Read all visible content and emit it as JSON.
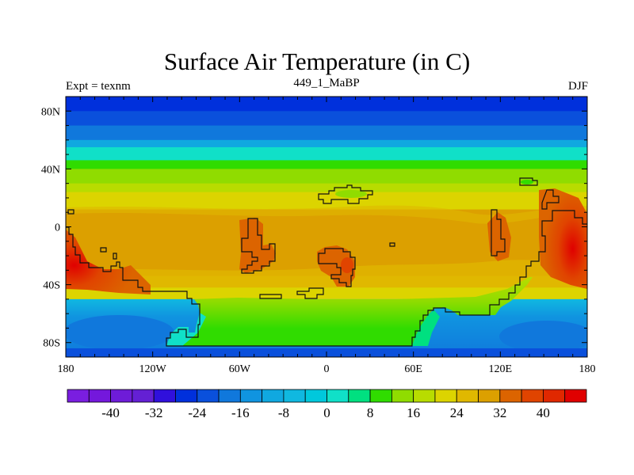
{
  "chart_data": {
    "type": "heatmap",
    "title": "Surface Air Temperature (in C)",
    "subtitle_left": "Expt = texnm",
    "subtitle_center": "449_1_MaBP",
    "subtitle_right": "DJF",
    "x_ticks": [
      "180",
      "120W",
      "60W",
      "0",
      "60E",
      "120E",
      "180"
    ],
    "x_tick_values": [
      -180,
      -120,
      -60,
      0,
      60,
      120,
      180
    ],
    "y_ticks": [
      "80N",
      "40N",
      "0",
      "40S",
      "80S"
    ],
    "y_tick_values": [
      80,
      40,
      0,
      -40,
      -80
    ],
    "xlim": [
      -180,
      180
    ],
    "ylim": [
      -90,
      90
    ],
    "colorbar": {
      "levels_min": -48,
      "levels_max": 48,
      "step": 4,
      "labels": [
        "-40",
        "-32",
        "-24",
        "-16",
        "-8",
        "0",
        "8",
        "16",
        "24",
        "32",
        "40"
      ],
      "colors": [
        "#7a1ee0",
        "#7418dc",
        "#6e1cd8",
        "#6420d4",
        "#3010dc",
        "#0030dc",
        "#0a50dc",
        "#1078dc",
        "#1094e0",
        "#10a8e0",
        "#10b8e0",
        "#00c8dc",
        "#10e0c8",
        "#00e080",
        "#30dc00",
        "#90dc00",
        "#b8dc00",
        "#dcd400",
        "#e0b800",
        "#dca000",
        "#dc6400",
        "#e04400",
        "#e02800",
        "#e00000"
      ]
    },
    "zonal_bands": [
      {
        "lat_top": 90,
        "lat_bottom": 80,
        "value": -26
      },
      {
        "lat_top": 80,
        "lat_bottom": 70,
        "value": -22
      },
      {
        "lat_top": 70,
        "lat_bottom": 60,
        "value": -18
      },
      {
        "lat_top": 60,
        "lat_bottom": 55,
        "value": -10
      },
      {
        "lat_top": 55,
        "lat_bottom": 46,
        "value": 2
      },
      {
        "lat_top": 46,
        "lat_bottom": 40,
        "value": 10
      },
      {
        "lat_top": 40,
        "lat_bottom": 30,
        "value": 14
      },
      {
        "lat_top": 30,
        "lat_bottom": 24,
        "value": 18
      },
      {
        "lat_top": 24,
        "lat_bottom": 12,
        "value": 22
      },
      {
        "lat_top": 12,
        "lat_bottom": -34,
        "value": 30
      },
      {
        "lat_top": -34,
        "lat_bottom": -42,
        "value": 26
      },
      {
        "lat_top": -42,
        "lat_bottom": -50,
        "value": 22
      },
      {
        "lat_top": -50,
        "lat_bottom": -90,
        "value": -14
      }
    ]
  }
}
